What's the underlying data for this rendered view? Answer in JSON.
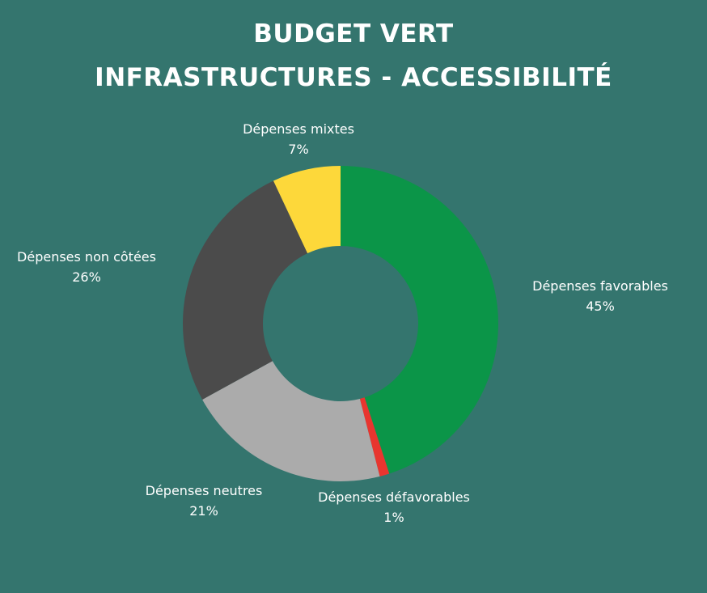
{
  "title": {
    "line1": "BUDGET VERT",
    "line2": "INFRASTRUCTURES - ACCESSIBILITÉ"
  },
  "chart_data": {
    "type": "pie",
    "variant": "donut",
    "title": "BUDGET VERT INFRASTRUCTURES - ACCESSIBILITÉ",
    "unit": "%",
    "legend": "none",
    "slices": [
      {
        "label": "Dépenses favorables",
        "value": 45,
        "value_label": "45%",
        "color": "#0b9548"
      },
      {
        "label": "Dépenses défavorables",
        "value": 1,
        "value_label": "1%",
        "color": "#e8352f"
      },
      {
        "label": "Dépenses neutres",
        "value": 21,
        "value_label": "21%",
        "color": "#ababab"
      },
      {
        "label": "Dépenses non côtées",
        "value": 26,
        "value_label": "26%",
        "color": "#4b4b4b"
      },
      {
        "label": "Dépenses mixtes",
        "value": 7,
        "value_label": "7%",
        "color": "#fdd83a"
      }
    ]
  }
}
